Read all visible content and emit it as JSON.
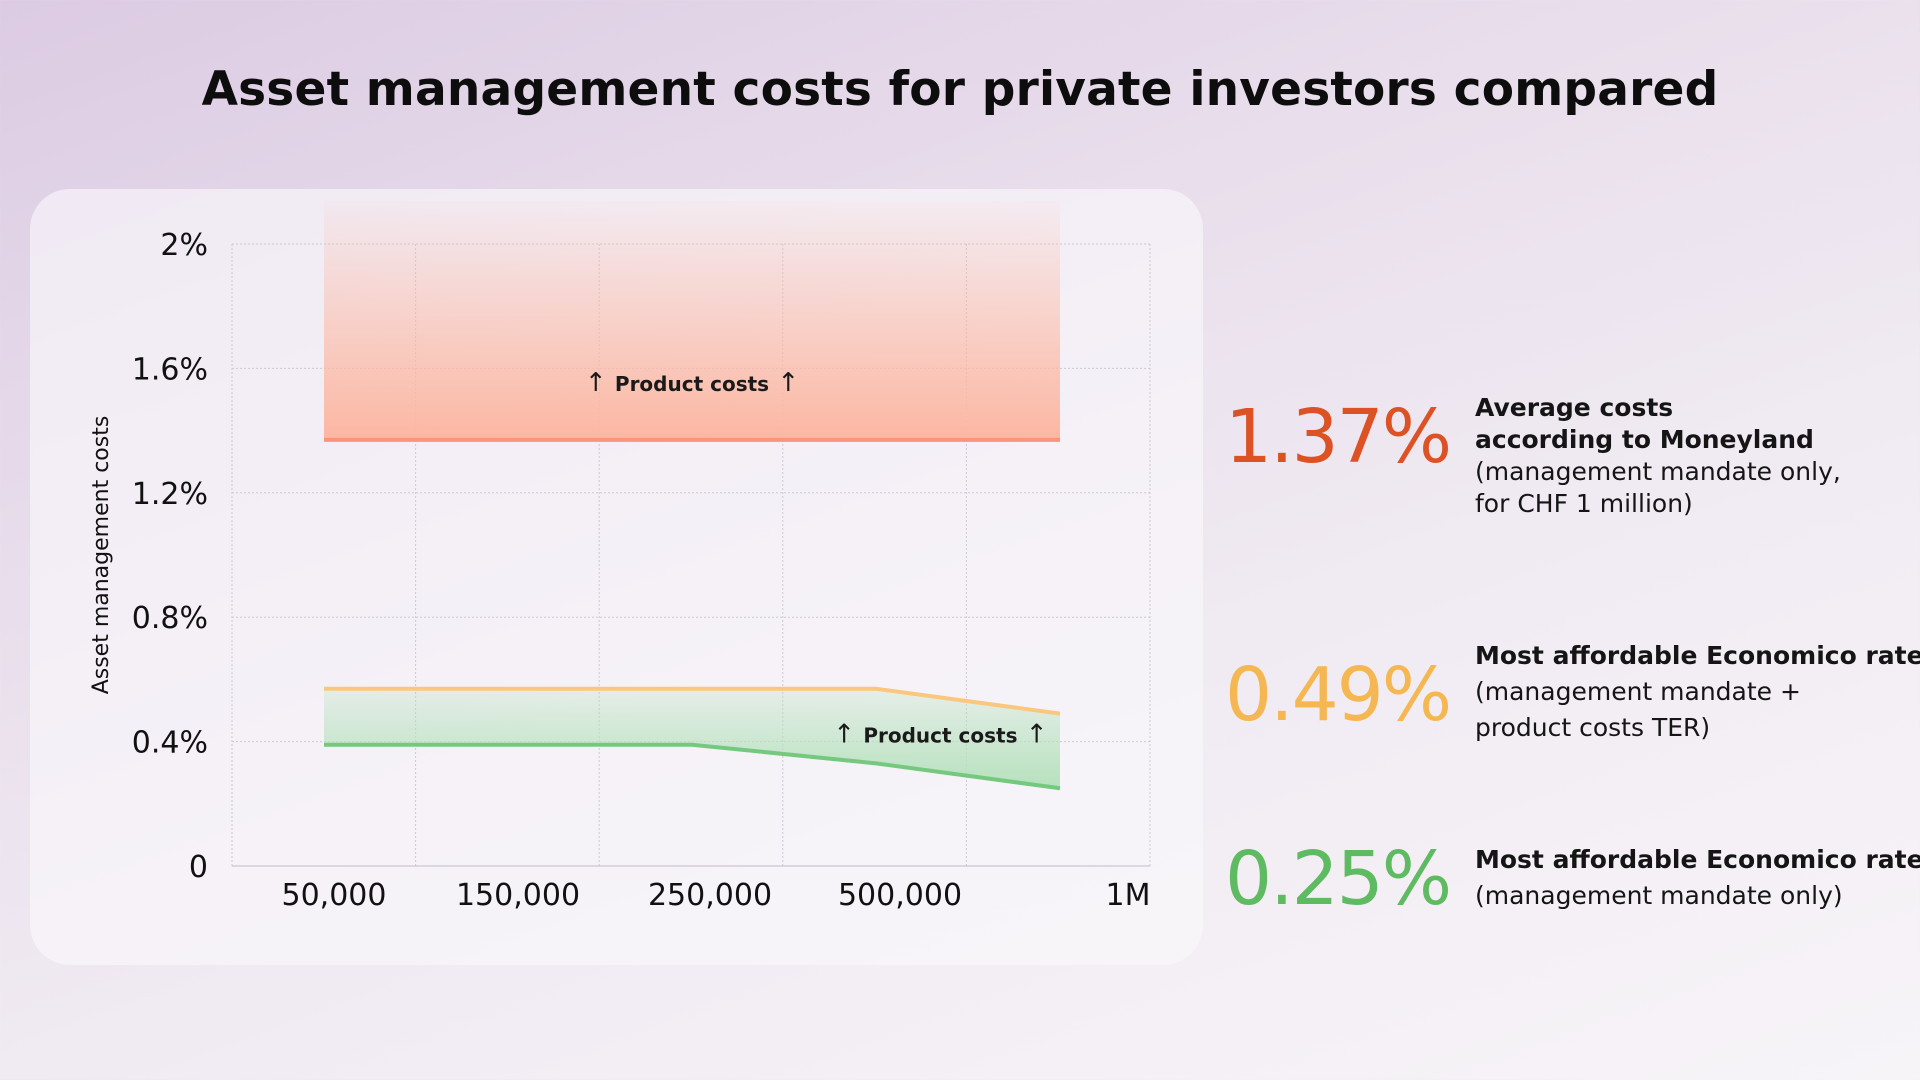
{
  "title": "Asset management costs for private investors compared",
  "colors": {
    "orange_line": "#fb9479",
    "orange_fill": "#fcb7a2",
    "yellow_line": "#fbc77e",
    "green_line": "#75c97e",
    "green_fill": "#b6e1bd",
    "stat_red": "#dc5224",
    "stat_yellow": "#f5b752",
    "stat_green": "#5ebb62"
  },
  "chart_data": {
    "type": "area",
    "ylabel": "Asset management costs",
    "xlabel": "",
    "x_tick_labels": [
      "50,000",
      "150,000",
      "250,000",
      "500,000",
      "1M"
    ],
    "y_tick_labels": [
      "0",
      "0.4%",
      "0.8%",
      "1.2%",
      "1.6%",
      "2%"
    ],
    "ylim": [
      0,
      2.0
    ],
    "grid": true,
    "series": [
      {
        "key": "moneyland",
        "x": [
          0,
          4
        ],
        "values": [
          1.37,
          1.37
        ]
      },
      {
        "key": "economico_ter",
        "x": [
          0,
          3,
          4
        ],
        "values": [
          0.57,
          0.57,
          0.49
        ]
      },
      {
        "key": "economico_mandate",
        "x": [
          0,
          2,
          3,
          4
        ],
        "values": [
          0.39,
          0.39,
          0.33,
          0.25
        ]
      }
    ],
    "annotations": [
      {
        "text": "Product costs",
        "x": 2.0,
        "y": 1.55
      },
      {
        "text": "Product costs",
        "x": 3.35,
        "y": 0.42
      }
    ],
    "arrow_glyph": "↑"
  },
  "stats": [
    {
      "value": "1.37%",
      "color": "#dc5224",
      "lines_bold": [
        "Average costs",
        "according to Moneyland"
      ],
      "lines": [
        "(management mandate only,",
        "for CHF 1 million)"
      ]
    },
    {
      "value": "0.49%",
      "color": "#f5b752",
      "lines_bold": [
        "Most affordable Economico rate"
      ],
      "lines": [
        "(management mandate +",
        "product costs TER)"
      ]
    },
    {
      "value": "0.25%",
      "color": "#5ebb62",
      "lines_bold": [
        "Most affordable Economico rate"
      ],
      "lines": [
        "(management mandate only)"
      ]
    }
  ]
}
